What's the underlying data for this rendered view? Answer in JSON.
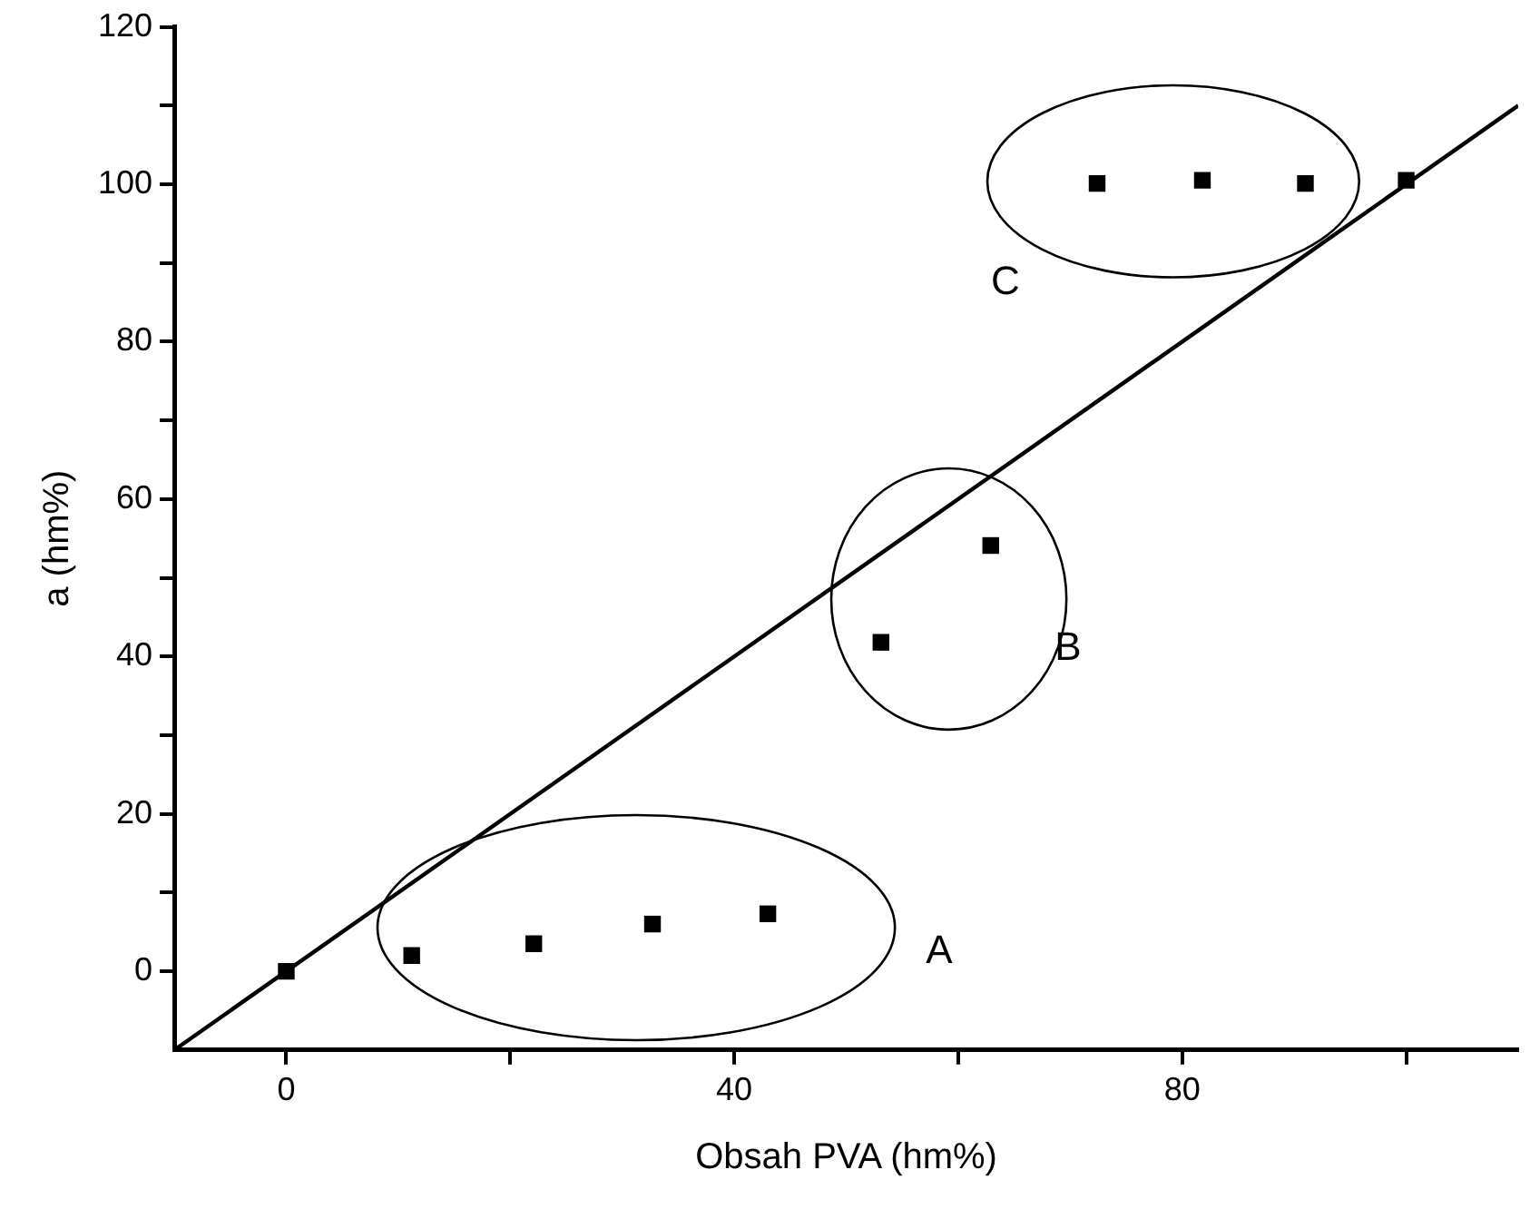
{
  "chart_data": {
    "type": "scatter",
    "xlabel": "Obsah PVA (hm%)",
    "ylabel": "a (hm%)",
    "xlim": [
      -10,
      110
    ],
    "ylim": [
      -10,
      120
    ],
    "xticks": [
      0,
      {
        "value": 20,
        "label": null
      },
      40,
      {
        "value": 60,
        "label": null
      },
      80,
      {
        "value": 100,
        "label": null
      }
    ],
    "yticks": [
      0,
      {
        "value": 10,
        "label": null
      },
      20,
      {
        "value": 30,
        "label": null
      },
      40,
      {
        "value": 50,
        "label": null
      },
      60,
      {
        "value": 70,
        "label": null
      },
      80,
      {
        "value": 90,
        "label": null
      },
      100,
      {
        "value": 110,
        "label": null
      },
      120
    ],
    "grid": false,
    "legend": false,
    "marker": "square",
    "series": [
      {
        "color": "#000000",
        "x": [
          0,
          11.2,
          22.1,
          32.7,
          43.0,
          53.1,
          62.9,
          72.4,
          81.8,
          91.0,
          100.0
        ],
        "values": [
          0,
          2.0,
          3.5,
          6.0,
          7.3,
          41.8,
          54.1,
          100.1,
          100.5,
          100.1,
          100.5
        ]
      },
      {
        "type": "line",
        "color": "#000000",
        "marker": "none",
        "x": [
          -10,
          110
        ],
        "values": [
          -10,
          110
        ]
      }
    ],
    "annotations": [
      "A",
      "B",
      "C"
    ]
  }
}
